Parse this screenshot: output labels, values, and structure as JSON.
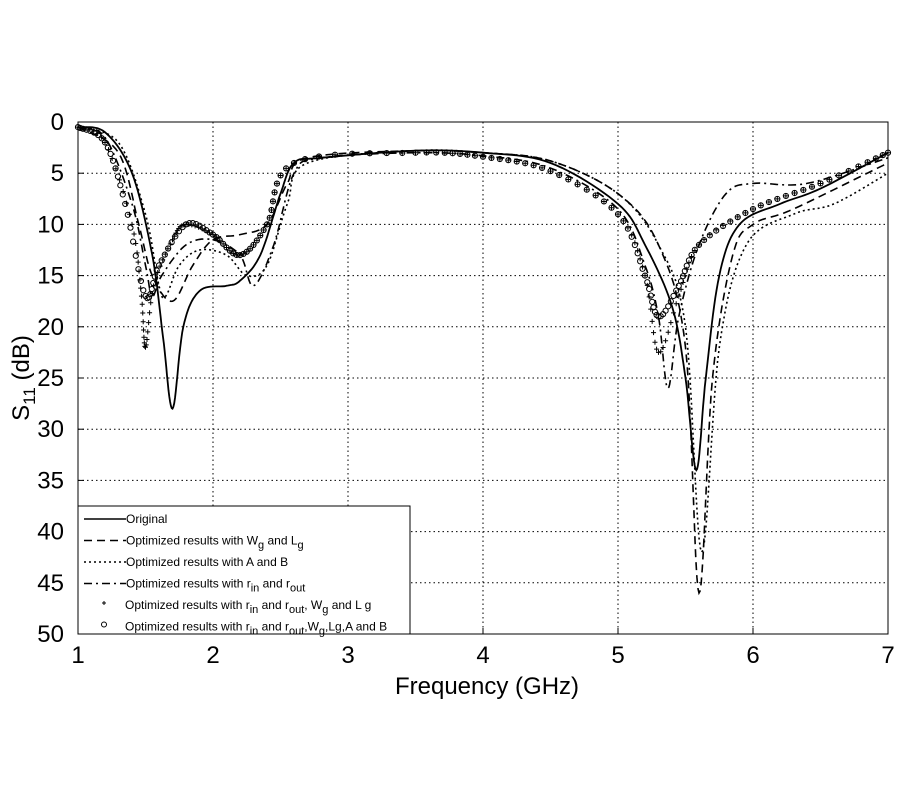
{
  "chart_data": {
    "type": "line",
    "title": "",
    "xlabel": "Frequency (GHz)",
    "ylabel": {
      "main": "S",
      "sub": "11",
      "rest": " (dB)"
    },
    "xlim": [
      1,
      7
    ],
    "ylim": [
      0,
      50
    ],
    "y_reversed": true,
    "xticks": [
      1,
      2,
      3,
      4,
      5,
      6,
      7
    ],
    "yticks": [
      0,
      5,
      10,
      15,
      20,
      25,
      30,
      35,
      40,
      45,
      50
    ],
    "grid": true,
    "grid_style": "dotted",
    "legend_placement": "bottom-left",
    "colors": {
      "lines": "#000000",
      "background": "#ffffff"
    },
    "series": [
      {
        "name": "Original",
        "style": "solid",
        "label_parts": [
          {
            "t": "Original"
          }
        ],
        "points": [
          [
            1,
            0.5
          ],
          [
            1.2,
            1
          ],
          [
            1.4,
            5
          ],
          [
            1.55,
            13
          ],
          [
            1.63,
            21
          ],
          [
            1.7,
            28
          ],
          [
            1.78,
            20
          ],
          [
            1.9,
            16.5
          ],
          [
            2.1,
            16
          ],
          [
            2.2,
            15.5
          ],
          [
            2.35,
            13
          ],
          [
            2.5,
            7
          ],
          [
            2.6,
            4
          ],
          [
            2.8,
            3.5
          ],
          [
            3.5,
            2.8
          ],
          [
            4,
            3
          ],
          [
            4.5,
            4
          ],
          [
            5,
            8
          ],
          [
            5.2,
            12
          ],
          [
            5.4,
            18
          ],
          [
            5.5,
            25
          ],
          [
            5.58,
            34
          ],
          [
            5.65,
            25
          ],
          [
            5.75,
            15
          ],
          [
            5.9,
            10
          ],
          [
            6.2,
            8
          ],
          [
            6.5,
            6.5
          ],
          [
            7,
            3
          ]
        ]
      },
      {
        "name": "Optimized results with Wg and Lg",
        "style": "dashed",
        "label_parts": [
          {
            "t": "Optimized results with W"
          },
          {
            "sub": "g"
          },
          {
            "t": " and L"
          },
          {
            "sub": "g"
          }
        ],
        "points": [
          [
            1,
            0.5
          ],
          [
            1.3,
            3
          ],
          [
            1.45,
            10
          ],
          [
            1.55,
            15
          ],
          [
            1.7,
            17.5
          ],
          [
            1.85,
            14
          ],
          [
            2.0,
            11.5
          ],
          [
            2.2,
            11
          ],
          [
            2.4,
            10
          ],
          [
            2.55,
            6
          ],
          [
            2.7,
            3.5
          ],
          [
            3.5,
            2.8
          ],
          [
            4,
            3
          ],
          [
            4.5,
            3.8
          ],
          [
            5,
            7
          ],
          [
            5.3,
            12
          ],
          [
            5.5,
            22
          ],
          [
            5.6,
            46
          ],
          [
            5.7,
            25
          ],
          [
            5.85,
            13
          ],
          [
            6,
            10
          ],
          [
            6.3,
            8.5
          ],
          [
            7,
            4
          ]
        ]
      },
      {
        "name": "Optimized results with A and B",
        "style": "dotted",
        "label_parts": [
          {
            "t": "Optimized results with A and B"
          }
        ],
        "points": [
          [
            1,
            0.5
          ],
          [
            1.3,
            2
          ],
          [
            1.5,
            9
          ],
          [
            1.6,
            16
          ],
          [
            1.65,
            17
          ],
          [
            1.75,
            14
          ],
          [
            1.9,
            12.5
          ],
          [
            2.1,
            13
          ],
          [
            2.25,
            15
          ],
          [
            2.4,
            14
          ],
          [
            2.55,
            8
          ],
          [
            2.7,
            4
          ],
          [
            3.5,
            2.8
          ],
          [
            4,
            3
          ],
          [
            4.5,
            3.8
          ],
          [
            5,
            7
          ],
          [
            5.3,
            12
          ],
          [
            5.5,
            20
          ],
          [
            5.62,
            42
          ],
          [
            5.75,
            22
          ],
          [
            5.95,
            12
          ],
          [
            6.3,
            9
          ],
          [
            6.6,
            8
          ],
          [
            7,
            5
          ]
        ]
      },
      {
        "name": "Optimized results with rin and rout",
        "style": "dashdot",
        "label_parts": [
          {
            "t": "Optimized results with r"
          },
          {
            "sub": "in"
          },
          {
            "t": " and r"
          },
          {
            "sub": "out"
          }
        ],
        "points": [
          [
            1,
            0.5
          ],
          [
            1.2,
            1.5
          ],
          [
            1.4,
            8
          ],
          [
            1.5,
            14
          ],
          [
            1.55,
            17
          ],
          [
            1.62,
            15
          ],
          [
            1.8,
            12
          ],
          [
            2.0,
            11.5
          ],
          [
            2.2,
            13
          ],
          [
            2.3,
            16
          ],
          [
            2.45,
            12
          ],
          [
            2.6,
            5
          ],
          [
            2.8,
            3.5
          ],
          [
            3.5,
            3
          ],
          [
            4,
            3.3
          ],
          [
            4.5,
            4.5
          ],
          [
            5,
            8.5
          ],
          [
            5.2,
            14
          ],
          [
            5.3,
            19
          ],
          [
            5.37,
            26
          ],
          [
            5.45,
            19
          ],
          [
            5.6,
            12
          ],
          [
            5.8,
            7
          ],
          [
            6,
            6
          ],
          [
            6.4,
            6
          ],
          [
            7,
            3.5
          ]
        ]
      },
      {
        "name": "Optimized results with rin and rout, Wg and Lg",
        "style": "plus",
        "label_parts": [
          {
            "t": "Optimized results with r"
          },
          {
            "sub": "in"
          },
          {
            "t": " and r"
          },
          {
            "sub": "out"
          },
          {
            "t": ", W"
          },
          {
            "sub": "g"
          },
          {
            "t": " and L g"
          }
        ],
        "points": [
          [
            1,
            0.5
          ],
          [
            1.2,
            2
          ],
          [
            1.4,
            10
          ],
          [
            1.47,
            17
          ],
          [
            1.5,
            22
          ],
          [
            1.56,
            16
          ],
          [
            1.7,
            11.5
          ],
          [
            1.8,
            10
          ],
          [
            2.0,
            11
          ],
          [
            2.2,
            13
          ],
          [
            2.4,
            10
          ],
          [
            2.6,
            4
          ],
          [
            3.5,
            3
          ],
          [
            4,
            3.4
          ],
          [
            4.5,
            4.8
          ],
          [
            5,
            9
          ],
          [
            5.2,
            15
          ],
          [
            5.3,
            22.5
          ],
          [
            5.45,
            17
          ],
          [
            5.6,
            12
          ],
          [
            6,
            8.5
          ],
          [
            6.5,
            6
          ],
          [
            7,
            3
          ]
        ]
      },
      {
        "name": "Optimized results with rin and rout, Wg, Lg, A and B",
        "style": "circle",
        "label_parts": [
          {
            "t": "Optimized results with r"
          },
          {
            "sub": "in"
          },
          {
            "t": " and r"
          },
          {
            "sub": "out"
          },
          {
            "t": ",W"
          },
          {
            "sub": "g"
          },
          {
            "t": ",Lg,A and B"
          }
        ],
        "points": [
          [
            1,
            0.5
          ],
          [
            1.2,
            2
          ],
          [
            1.35,
            8
          ],
          [
            1.5,
            17
          ],
          [
            1.6,
            14
          ],
          [
            1.8,
            10
          ],
          [
            2.0,
            11
          ],
          [
            2.2,
            13
          ],
          [
            2.4,
            10
          ],
          [
            2.6,
            4
          ],
          [
            3.5,
            3
          ],
          [
            4,
            3.4
          ],
          [
            4.5,
            4.8
          ],
          [
            5,
            9
          ],
          [
            5.2,
            15
          ],
          [
            5.3,
            19
          ],
          [
            5.45,
            16
          ],
          [
            5.6,
            12
          ],
          [
            6,
            8.5
          ],
          [
            6.5,
            6
          ],
          [
            7,
            3
          ]
        ]
      }
    ]
  }
}
